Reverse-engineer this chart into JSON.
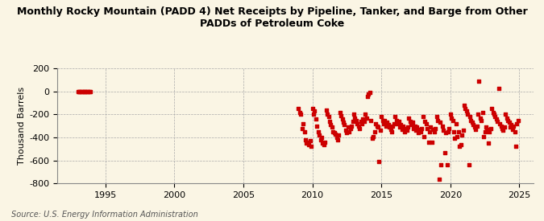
{
  "title": "Monthly Rocky Mountain (PADD 4) Net Receipts by Pipeline, Tanker, and Barge from Other\nPADDs of Petroleum Coke",
  "ylabel": "Thousand Barrels",
  "source": "Source: U.S. Energy Information Administration",
  "background_color": "#faf5e4",
  "marker_color": "#cc0000",
  "xlim": [
    1991.5,
    2026
  ],
  "ylim": [
    -800,
    200
  ],
  "yticks": [
    -800,
    -600,
    -400,
    -200,
    0,
    200
  ],
  "xticks": [
    1995,
    2000,
    2005,
    2010,
    2015,
    2020,
    2025
  ],
  "early_data": [
    [
      1993.0,
      0
    ],
    [
      1993.08,
      0
    ],
    [
      1993.17,
      0
    ],
    [
      1993.25,
      0
    ],
    [
      1993.33,
      0
    ],
    [
      1993.42,
      0
    ],
    [
      1993.5,
      0
    ],
    [
      1993.58,
      0
    ],
    [
      1993.67,
      0
    ],
    [
      1993.75,
      0
    ],
    [
      1993.83,
      0
    ],
    [
      1993.92,
      0
    ]
  ],
  "scatter_data": [
    [
      2009.0,
      -150
    ],
    [
      2009.17,
      -200
    ],
    [
      2009.33,
      -280
    ],
    [
      2009.5,
      -420
    ],
    [
      2009.67,
      -440
    ],
    [
      2009.83,
      -430
    ],
    [
      2010.0,
      -150
    ],
    [
      2010.17,
      -170
    ],
    [
      2010.33,
      -300
    ],
    [
      2010.5,
      -380
    ],
    [
      2010.67,
      -400
    ],
    [
      2010.83,
      -460
    ],
    [
      2011.0,
      -160
    ],
    [
      2011.17,
      -220
    ],
    [
      2011.33,
      -290
    ],
    [
      2011.5,
      -350
    ],
    [
      2011.67,
      -370
    ],
    [
      2011.83,
      -420
    ],
    [
      2012.0,
      -180
    ],
    [
      2012.17,
      -240
    ],
    [
      2012.33,
      -290
    ],
    [
      2012.5,
      -360
    ],
    [
      2012.67,
      -350
    ],
    [
      2012.83,
      -300
    ],
    [
      2013.0,
      -200
    ],
    [
      2013.17,
      -250
    ],
    [
      2013.33,
      -300
    ],
    [
      2013.5,
      -260
    ],
    [
      2013.67,
      -240
    ],
    [
      2013.83,
      -200
    ],
    [
      2014.0,
      -40
    ],
    [
      2014.17,
      -10
    ],
    [
      2014.33,
      -410
    ],
    [
      2014.5,
      -350
    ],
    [
      2014.67,
      -300
    ],
    [
      2014.83,
      -610
    ],
    [
      2015.0,
      -220
    ],
    [
      2015.17,
      -280
    ],
    [
      2015.33,
      -300
    ],
    [
      2015.5,
      -290
    ],
    [
      2015.67,
      -330
    ],
    [
      2015.83,
      -300
    ],
    [
      2016.0,
      -220
    ],
    [
      2016.17,
      -280
    ],
    [
      2016.33,
      -310
    ],
    [
      2016.5,
      -330
    ],
    [
      2016.67,
      -350
    ],
    [
      2016.83,
      -340
    ],
    [
      2017.0,
      -230
    ],
    [
      2017.17,
      -290
    ],
    [
      2017.33,
      -320
    ],
    [
      2017.5,
      -340
    ],
    [
      2017.67,
      -360
    ],
    [
      2017.83,
      -350
    ],
    [
      2018.0,
      -220
    ],
    [
      2018.17,
      -260
    ],
    [
      2018.33,
      -320
    ],
    [
      2018.5,
      -350
    ],
    [
      2018.67,
      -440
    ],
    [
      2018.83,
      -350
    ],
    [
      2019.0,
      -220
    ],
    [
      2019.17,
      -760
    ],
    [
      2019.33,
      -640
    ],
    [
      2019.5,
      -340
    ],
    [
      2019.67,
      -360
    ],
    [
      2019.83,
      -350
    ],
    [
      2020.0,
      -200
    ],
    [
      2020.17,
      -250
    ],
    [
      2020.33,
      -410
    ],
    [
      2020.5,
      -390
    ],
    [
      2020.67,
      -480
    ],
    [
      2020.83,
      -380
    ],
    [
      2021.0,
      -120
    ],
    [
      2021.17,
      -170
    ],
    [
      2021.33,
      -640
    ],
    [
      2021.5,
      -250
    ],
    [
      2021.67,
      -290
    ],
    [
      2021.83,
      -330
    ],
    [
      2022.0,
      -200
    ],
    [
      2022.17,
      -230
    ],
    [
      2022.33,
      -180
    ],
    [
      2022.5,
      -350
    ],
    [
      2022.67,
      -330
    ],
    [
      2022.83,
      -350
    ],
    [
      2023.0,
      -150
    ],
    [
      2023.17,
      -200
    ],
    [
      2023.33,
      -240
    ],
    [
      2023.5,
      30
    ],
    [
      2023.67,
      -300
    ],
    [
      2023.83,
      -340
    ],
    [
      2024.0,
      -200
    ],
    [
      2024.17,
      -250
    ],
    [
      2024.33,
      -310
    ],
    [
      2024.5,
      -330
    ],
    [
      2024.67,
      -350
    ],
    [
      2024.83,
      -280
    ],
    [
      2009.08,
      -180
    ],
    [
      2009.25,
      -320
    ],
    [
      2009.42,
      -350
    ],
    [
      2009.58,
      -450
    ],
    [
      2009.75,
      -460
    ],
    [
      2009.92,
      -480
    ],
    [
      2010.08,
      -200
    ],
    [
      2010.25,
      -240
    ],
    [
      2010.42,
      -350
    ],
    [
      2010.58,
      -420
    ],
    [
      2010.75,
      -450
    ],
    [
      2010.92,
      -440
    ],
    [
      2011.08,
      -200
    ],
    [
      2011.25,
      -260
    ],
    [
      2011.42,
      -310
    ],
    [
      2011.58,
      -360
    ],
    [
      2011.75,
      -400
    ],
    [
      2011.92,
      -380
    ],
    [
      2012.08,
      -210
    ],
    [
      2012.25,
      -270
    ],
    [
      2012.42,
      -340
    ],
    [
      2012.58,
      -310
    ],
    [
      2012.75,
      -320
    ],
    [
      2012.92,
      -260
    ],
    [
      2013.08,
      -230
    ],
    [
      2013.25,
      -280
    ],
    [
      2013.42,
      -320
    ],
    [
      2013.58,
      -280
    ],
    [
      2013.75,
      -260
    ],
    [
      2013.92,
      -230
    ],
    [
      2014.08,
      -20
    ],
    [
      2014.25,
      -250
    ],
    [
      2014.42,
      -390
    ],
    [
      2014.58,
      -280
    ],
    [
      2014.75,
      -310
    ],
    [
      2014.92,
      -340
    ],
    [
      2015.08,
      -250
    ],
    [
      2015.25,
      -250
    ],
    [
      2015.42,
      -270
    ],
    [
      2015.58,
      -310
    ],
    [
      2015.75,
      -350
    ],
    [
      2015.92,
      -280
    ],
    [
      2016.08,
      -250
    ],
    [
      2016.25,
      -260
    ],
    [
      2016.42,
      -290
    ],
    [
      2016.58,
      -300
    ],
    [
      2016.75,
      -320
    ],
    [
      2016.92,
      -310
    ],
    [
      2017.08,
      -260
    ],
    [
      2017.25,
      -270
    ],
    [
      2017.42,
      -300
    ],
    [
      2017.58,
      -310
    ],
    [
      2017.75,
      -330
    ],
    [
      2017.92,
      -320
    ],
    [
      2018.08,
      -390
    ],
    [
      2018.25,
      -280
    ],
    [
      2018.42,
      -440
    ],
    [
      2018.58,
      -310
    ],
    [
      2018.75,
      -330
    ],
    [
      2018.92,
      -320
    ],
    [
      2019.08,
      -250
    ],
    [
      2019.25,
      -270
    ],
    [
      2019.42,
      -300
    ],
    [
      2019.58,
      -530
    ],
    [
      2019.75,
      -640
    ],
    [
      2019.92,
      -320
    ],
    [
      2020.08,
      -230
    ],
    [
      2020.25,
      -350
    ],
    [
      2020.42,
      -280
    ],
    [
      2020.58,
      -350
    ],
    [
      2020.75,
      -460
    ],
    [
      2020.92,
      -340
    ],
    [
      2021.08,
      -150
    ],
    [
      2021.25,
      -200
    ],
    [
      2021.42,
      -220
    ],
    [
      2021.58,
      -270
    ],
    [
      2021.75,
      -310
    ],
    [
      2021.92,
      -300
    ],
    [
      2022.08,
      90
    ],
    [
      2022.25,
      -250
    ],
    [
      2022.42,
      -390
    ],
    [
      2022.58,
      -310
    ],
    [
      2022.75,
      -450
    ],
    [
      2022.92,
      -320
    ],
    [
      2023.08,
      -180
    ],
    [
      2023.25,
      -220
    ],
    [
      2023.42,
      -260
    ],
    [
      2023.58,
      -280
    ],
    [
      2023.75,
      -320
    ],
    [
      2023.92,
      -310
    ],
    [
      2024.08,
      -230
    ],
    [
      2024.25,
      -270
    ],
    [
      2024.42,
      -290
    ],
    [
      2024.58,
      -300
    ],
    [
      2024.75,
      -480
    ],
    [
      2024.92,
      -250
    ]
  ]
}
